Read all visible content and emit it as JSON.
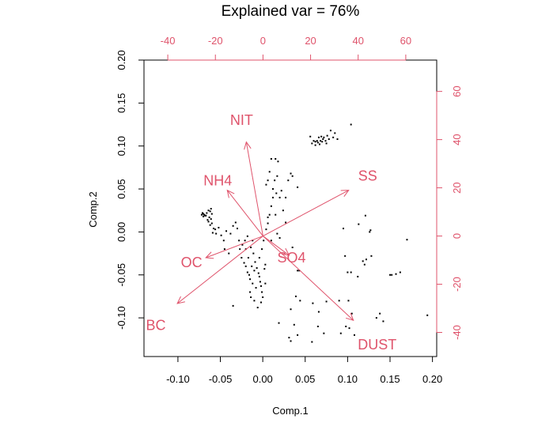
{
  "chart_data": {
    "type": "scatter",
    "title": "Explained var = 76%",
    "xlabel": "Comp.1",
    "ylabel": "Comp.2",
    "xlim": [
      -0.14,
      0.205
    ],
    "ylim": [
      -0.145,
      0.2
    ],
    "x_ticks": [
      "-0.10",
      "-0.05",
      "0.00",
      "0.05",
      "0.10",
      "0.15",
      "0.20"
    ],
    "y_ticks": [
      "-0.10",
      "-0.05",
      "0.00",
      "0.05",
      "0.10",
      "0.15",
      "0.20"
    ],
    "top_axis": {
      "lim": [
        -50,
        73
      ],
      "ticks": [
        "-40",
        "-20",
        "0",
        "20",
        "40",
        "60"
      ]
    },
    "right_axis": {
      "lim": [
        -50,
        73
      ],
      "ticks": [
        "-40",
        "-20",
        "0",
        "20",
        "40",
        "60"
      ]
    },
    "grid": false,
    "point_color": "#000000",
    "arrow_color": "#DF536B",
    "loadings": [
      {
        "name": "NIT",
        "x": -7,
        "y": 39
      },
      {
        "name": "NH4",
        "x": -15,
        "y": 19
      },
      {
        "name": "SS",
        "x": 36,
        "y": 19
      },
      {
        "name": "OC",
        "x": -24,
        "y": -9
      },
      {
        "name": "SO4",
        "x": 11,
        "y": -8
      },
      {
        "name": "BC",
        "x": -36,
        "y": -28
      },
      {
        "name": "DUST",
        "x": 38,
        "y": -35
      }
    ],
    "label_positions": [
      {
        "name": "NIT",
        "x": -9,
        "y": 48
      },
      {
        "name": "NH4",
        "x": -19,
        "y": 23
      },
      {
        "name": "SS",
        "x": 44,
        "y": 25
      },
      {
        "name": "OC",
        "x": -30,
        "y": -11
      },
      {
        "name": "SO4",
        "x": 12,
        "y": -9
      },
      {
        "name": "BC",
        "x": -45,
        "y": -37
      },
      {
        "name": "DUST",
        "x": 48,
        "y": -45
      }
    ],
    "points": [
      [
        -0.07,
        0.021
      ],
      [
        -0.069,
        0.02
      ],
      [
        -0.071,
        0.022
      ],
      [
        -0.068,
        0.019
      ],
      [
        -0.07,
        0.018
      ],
      [
        -0.066,
        0.022
      ],
      [
        -0.064,
        0.025
      ],
      [
        -0.062,
        0.024
      ],
      [
        -0.061,
        0.027
      ],
      [
        -0.06,
        0.021
      ],
      [
        -0.063,
        0.017
      ],
      [
        -0.064,
        0.012
      ],
      [
        -0.062,
        0.008
      ],
      [
        -0.06,
        0.01
      ],
      [
        -0.058,
        0.004
      ],
      [
        -0.059,
        -0.001
      ],
      [
        -0.056,
        0.003
      ],
      [
        -0.055,
        -0.002
      ],
      [
        -0.067,
        0.019
      ],
      [
        -0.065,
        0.014
      ],
      [
        -0.072,
        0.02
      ],
      [
        -0.061,
        0.015
      ],
      [
        -0.052,
        0.005
      ],
      [
        -0.049,
        -0.004
      ],
      [
        -0.046,
        -0.01
      ],
      [
        -0.045,
        -0.02
      ],
      [
        -0.04,
        -0.025
      ],
      [
        -0.043,
        0.001
      ],
      [
        -0.038,
        -0.002
      ],
      [
        -0.035,
        0.007
      ],
      [
        -0.032,
        0.011
      ],
      [
        -0.03,
        0.004
      ],
      [
        -0.028,
        -0.01
      ],
      [
        -0.027,
        -0.02
      ],
      [
        -0.025,
        -0.03
      ],
      [
        -0.022,
        -0.036
      ],
      [
        -0.02,
        -0.04
      ],
      [
        -0.018,
        -0.047
      ],
      [
        -0.016,
        -0.05
      ],
      [
        -0.015,
        -0.055
      ],
      [
        -0.012,
        -0.06
      ],
      [
        -0.01,
        -0.045
      ],
      [
        -0.013,
        -0.04
      ],
      [
        -0.009,
        -0.035
      ],
      [
        -0.007,
        -0.042
      ],
      [
        -0.005,
        -0.048
      ],
      [
        -0.004,
        -0.052
      ],
      [
        -0.003,
        -0.058
      ],
      [
        -0.002,
        -0.063
      ],
      [
        -0.001,
        -0.07
      ],
      [
        0.0,
        -0.076
      ],
      [
        0.002,
        -0.043
      ],
      [
        0.003,
        -0.038
      ],
      [
        -0.011,
        -0.025
      ],
      [
        -0.017,
        -0.03
      ],
      [
        -0.02,
        -0.02
      ],
      [
        -0.024,
        -0.015
      ],
      [
        -0.021,
        -0.01
      ],
      [
        -0.018,
        -0.005
      ],
      [
        -0.014,
        -0.018
      ],
      [
        -0.012,
        -0.01
      ],
      [
        -0.015,
        -0.07
      ],
      [
        -0.014,
        -0.076
      ],
      [
        -0.01,
        -0.08
      ],
      [
        -0.035,
        -0.086
      ],
      [
        -0.006,
        -0.088
      ],
      [
        -0.002,
        -0.082
      ],
      [
        0.003,
        -0.06
      ],
      [
        -0.008,
        -0.065
      ],
      [
        -0.004,
        -0.03
      ],
      [
        -0.001,
        -0.02
      ],
      [
        0.001,
        -0.01
      ],
      [
        0.004,
        0.003
      ],
      [
        0.006,
        0.01
      ],
      [
        0.008,
        0.02
      ],
      [
        0.01,
        0.03
      ],
      [
        0.012,
        0.04
      ],
      [
        0.014,
        0.06
      ],
      [
        0.015,
        0.085
      ],
      [
        0.01,
        0.085
      ],
      [
        0.018,
        0.082
      ],
      [
        0.008,
        0.07
      ],
      [
        0.012,
        0.05
      ],
      [
        0.016,
        0.045
      ],
      [
        0.02,
        0.04
      ],
      [
        0.006,
        0.06
      ],
      [
        0.004,
        0.055
      ],
      [
        0.017,
        0.065
      ],
      [
        0.022,
        0.048
      ],
      [
        0.03,
        0.06
      ],
      [
        0.035,
        0.065
      ],
      [
        0.041,
        0.052
      ],
      [
        0.033,
        0.068
      ],
      [
        0.027,
        0.04
      ],
      [
        0.006,
        0.017
      ],
      [
        0.015,
        0.02
      ],
      [
        0.024,
        0.025
      ],
      [
        0.027,
        0.011
      ],
      [
        0.017,
        -0.002
      ],
      [
        0.01,
        -0.01
      ],
      [
        0.02,
        -0.007
      ],
      [
        0.035,
        -0.018
      ],
      [
        0.043,
        -0.045
      ],
      [
        0.041,
        -0.045
      ],
      [
        0.039,
        -0.075
      ],
      [
        0.044,
        -0.08
      ],
      [
        0.033,
        -0.09
      ],
      [
        0.037,
        -0.108
      ],
      [
        0.041,
        -0.12
      ],
      [
        0.031,
        -0.123
      ],
      [
        0.033,
        -0.127
      ],
      [
        0.019,
        -0.106
      ],
      [
        0.059,
        -0.083
      ],
      [
        0.066,
        -0.093
      ],
      [
        0.065,
        -0.11
      ],
      [
        0.072,
        -0.118
      ],
      [
        0.058,
        -0.128
      ],
      [
        0.075,
        -0.081
      ],
      [
        0.09,
        -0.08
      ],
      [
        0.101,
        -0.08
      ],
      [
        0.1,
        -0.047
      ],
      [
        0.097,
        -0.028
      ],
      [
        0.104,
        -0.047
      ],
      [
        0.112,
        -0.052
      ],
      [
        0.12,
        -0.038
      ],
      [
        0.128,
        -0.028
      ],
      [
        0.15,
        -0.05
      ],
      [
        0.152,
        -0.05
      ],
      [
        0.157,
        -0.049
      ],
      [
        0.162,
        -0.047
      ],
      [
        0.17,
        -0.009
      ],
      [
        0.194,
        -0.097
      ],
      [
        0.134,
        -0.1
      ],
      [
        0.138,
        -0.095
      ],
      [
        0.142,
        -0.104
      ],
      [
        0.105,
        -0.095
      ],
      [
        0.108,
        -0.12
      ],
      [
        0.102,
        -0.112
      ],
      [
        0.098,
        -0.11
      ],
      [
        0.092,
        -0.118
      ],
      [
        0.095,
        0.004
      ],
      [
        0.121,
        0.019
      ],
      [
        0.127,
        0.002
      ],
      [
        0.126,
        0.0
      ],
      [
        0.122,
        -0.032
      ],
      [
        0.118,
        -0.034
      ],
      [
        0.113,
        0.009
      ],
      [
        0.104,
        0.125
      ],
      [
        0.083,
        0.11
      ],
      [
        0.085,
        0.115
      ],
      [
        0.08,
        0.118
      ],
      [
        0.076,
        0.112
      ],
      [
        0.071,
        0.108
      ],
      [
        0.068,
        0.106
      ],
      [
        0.066,
        0.11
      ],
      [
        0.064,
        0.106
      ],
      [
        0.062,
        0.105
      ],
      [
        0.06,
        0.106
      ],
      [
        0.058,
        0.103
      ],
      [
        0.074,
        0.106
      ],
      [
        0.07,
        0.105
      ],
      [
        0.072,
        0.11
      ],
      [
        0.067,
        0.102
      ],
      [
        0.075,
        0.103
      ],
      [
        0.078,
        0.108
      ],
      [
        0.088,
        0.108
      ],
      [
        0.056,
        0.111
      ],
      [
        0.062,
        0.101
      ],
      [
        0.069,
        0.111
      ],
      [
        0.065,
        0.104
      ]
    ]
  }
}
